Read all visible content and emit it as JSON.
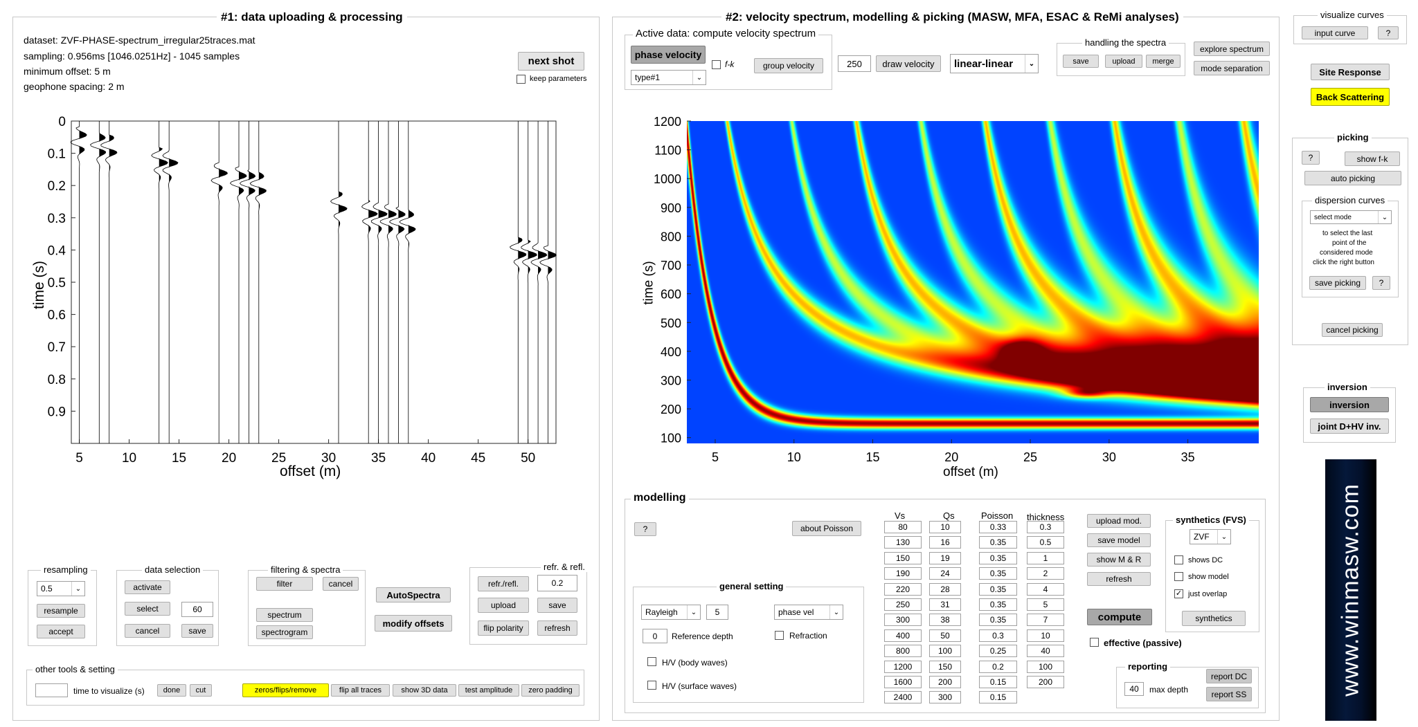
{
  "panel1": {
    "title": "#1: data uploading & processing",
    "info": [
      "dataset: ZVF-PHASE-spectrum_irregular25traces.mat",
      "sampling: 0.956ms [1046.0251Hz] - 1045 samples",
      "minimum offset: 5 m",
      "geophone spacing: 2 m"
    ],
    "next_shot": "next shot",
    "keep_parameters": "keep parameters",
    "seismogram": {
      "type": "wiggle",
      "xlabel": "offset (m)",
      "ylabel": "time (s)",
      "xticks": [
        "5",
        "10",
        "15",
        "20",
        "25",
        "30",
        "35",
        "40",
        "45",
        "50"
      ],
      "yticks": [
        "0",
        "0.1",
        "0.2",
        "0.3",
        "0.4",
        "0.5",
        "0.6",
        "0.7",
        "0.8",
        "0.9"
      ],
      "trace_offsets": [
        5,
        7,
        8,
        13,
        14,
        19,
        21,
        22,
        23,
        31,
        34,
        35,
        36,
        37,
        38,
        49,
        50,
        51,
        52
      ]
    },
    "resampling": {
      "title": "resampling",
      "value": "0.5",
      "resample": "resample",
      "accept": "accept"
    },
    "data_selection": {
      "title": "data selection",
      "activate": "activate",
      "select": "select",
      "value": "60",
      "cancel": "cancel",
      "save": "save"
    },
    "filtering": {
      "title": "filtering & spectra",
      "filter": "filter",
      "cancel": "cancel",
      "spectrum": "spectrum",
      "spectrogram": "spectrogram"
    },
    "autospectra": "AutoSpectra",
    "modify_offsets": "modify offsets",
    "refr": {
      "title": "refr. & refl.",
      "refr_refl": "refr./refl.",
      "value": "0.2",
      "upload": "upload",
      "save": "save",
      "flip": "flip polarity",
      "refresh": "refresh"
    },
    "other": {
      "title": "other tools & setting",
      "time_label": "time to visualize (s)",
      "done": "done",
      "cut": "cut",
      "zeros": "zeros/flips/remove",
      "flip_all": "flip all traces",
      "show3d": "show 3D data",
      "test_amp": "test amplitude",
      "zero_pad": "zero padding"
    }
  },
  "panel2": {
    "title": "#2: velocity spectrum, modelling & picking (MASW, MFA, ESAC & ReMi analyses)",
    "active": {
      "title": "Active data: compute velocity spectrum",
      "phase_velocity": "phase velocity",
      "fk": "f-k",
      "type": "type#1",
      "group_velocity": "group velocity"
    },
    "draw_value": "250",
    "draw_velocity": "draw velocity",
    "scale": "linear-linear",
    "handling": {
      "title": "handling the spectra",
      "save": "save",
      "upload": "upload",
      "merge": "merge"
    },
    "explore": "explore spectrum",
    "mode_sep": "mode separation",
    "spectrum": {
      "type": "heatmap",
      "xlabel": "offset (m)",
      "ylabel": "time (s)",
      "xticks": [
        "5",
        "10",
        "15",
        "20",
        "25",
        "30",
        "35"
      ],
      "yticks": [
        "1200",
        "1100",
        "1000",
        "900",
        "800",
        "700",
        "600",
        "500",
        "400",
        "300",
        "200",
        "100"
      ]
    },
    "modelling": {
      "title": "modelling",
      "help": "?",
      "about_poisson": "about Poisson",
      "headers": [
        "Vs",
        "Qs",
        "Poisson",
        "thickness"
      ],
      "vs": [
        "80",
        "130",
        "150",
        "190",
        "220",
        "250",
        "300",
        "400",
        "800",
        "1200",
        "1600",
        "2400"
      ],
      "qs": [
        "10",
        "16",
        "19",
        "24",
        "28",
        "31",
        "38",
        "50",
        "100",
        "150",
        "200",
        "300"
      ],
      "poisson": [
        "0.33",
        "0.35",
        "0.35",
        "0.35",
        "0.35",
        "0.35",
        "0.35",
        "0.3",
        "0.25",
        "0.2",
        "0.15",
        "0.15"
      ],
      "thickness": [
        "0.3",
        "0.5",
        "1",
        "2",
        "4",
        "5",
        "7",
        "10",
        "40",
        "100",
        "200"
      ],
      "general": {
        "title": "general setting",
        "wave": "Rayleigh",
        "modes": "5",
        "vel": "phase vel",
        "depth": "0",
        "depth_label": "Reference depth",
        "refraction": "Refraction",
        "hv_body": "H/V (body waves)",
        "hv_surface": "H/V (surface waves)"
      },
      "upload_mod": "upload mod.",
      "save_model": "save model",
      "show_mr": "show M & R",
      "refresh": "refresh",
      "compute": "compute",
      "effective": "effective (passive)",
      "synthetics": {
        "title": "synthetics (FVS)",
        "value": "ZVF",
        "shows_dc": "shows DC",
        "show_model": "show model",
        "just_overlap": "just overlap",
        "button": "synthetics"
      },
      "reporting": {
        "title": "reporting",
        "value": "40",
        "max_depth": "max depth",
        "report_dc": "report DC",
        "report_ss": "report SS"
      }
    }
  },
  "right": {
    "visualize": {
      "title": "visualize curves",
      "input_curve": "input curve",
      "help": "?"
    },
    "site_response": "Site Response",
    "back_scattering": "Back Scattering",
    "picking": {
      "title": "picking",
      "help": "?",
      "show_fk": "show f-k",
      "auto": "auto picking",
      "dispersion_title": "dispersion curves",
      "select_mode": "select mode",
      "note": [
        "to select the last",
        "point of the",
        "considered mode",
        "click the right button"
      ],
      "save": "save picking",
      "help2": "?",
      "cancel": "cancel picking"
    },
    "inversion": {
      "title": "inversion",
      "button": "inversion",
      "joint": "joint D+HV inv."
    },
    "logo": "www.winmasw.com"
  },
  "colors": {
    "highlight": "#ffff00",
    "border": "#c8c8c8",
    "button": "#e1e1e1"
  }
}
